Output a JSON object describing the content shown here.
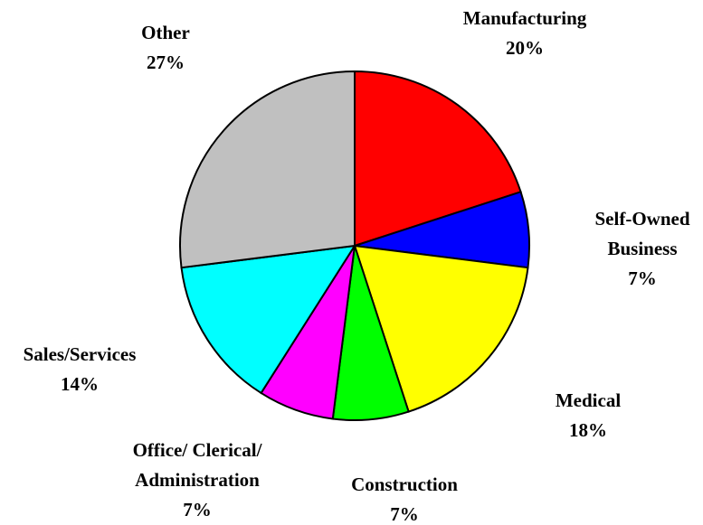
{
  "chart_data": {
    "type": "pie",
    "categories": [
      "Manufacturing",
      "Self-Owned Business",
      "Medical",
      "Construction",
      "Office/ Clerical/ Administration",
      "Sales/Services",
      "Other"
    ],
    "values": [
      20,
      7,
      18,
      7,
      7,
      14,
      27
    ],
    "value_labels": [
      "20%",
      "7%",
      "18%",
      "7%",
      "7%",
      "14%",
      "27%"
    ],
    "colors": [
      "#ff0000",
      "#0000ff",
      "#ffff00",
      "#00ff00",
      "#ff00ff",
      "#00ffff",
      "#c0c0c0"
    ]
  }
}
